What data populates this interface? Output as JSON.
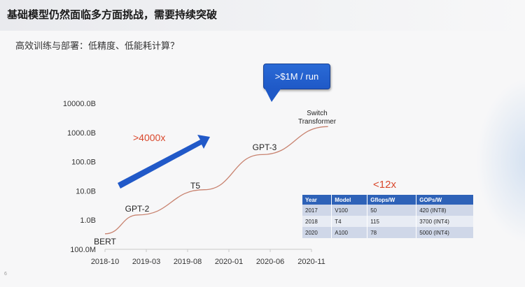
{
  "header": {
    "title": "基础模型仍然面临多方面挑战，需要持续突破"
  },
  "subtitle": "高效训练与部署：低精度、低能耗计算？",
  "page_number": "6",
  "callout": {
    "label": ">$1M / run",
    "color": "#1f59c7"
  },
  "growth_label": ">4000x",
  "efficiency_label": "<12x",
  "colors": {
    "accent_red": "#d9472b",
    "curve": "#c8826f",
    "arrow_blue": "#2159c8",
    "table_header": "#2e62b8"
  },
  "chart_data": {
    "type": "line",
    "title": "",
    "xlabel": "",
    "ylabel": "",
    "yscale": "log",
    "x_ticks": [
      "2018-10",
      "2019-03",
      "2019-08",
      "2020-01",
      "2020-06",
      "2020-11"
    ],
    "y_ticks": [
      "100.0M",
      "1.0B",
      "10.0B",
      "100.0B",
      "1000.0B",
      "10000.0B"
    ],
    "xlim": [
      "2018-10",
      "2020-11"
    ],
    "ylim_params_billion": [
      0.1,
      10000
    ],
    "series": [
      {
        "points": [
          {
            "x": "2018-10",
            "y": 0.34,
            "label": "BERT"
          },
          {
            "x": "2019-02",
            "y": 1.5,
            "label": "GPT-2"
          },
          {
            "x": "2019-10",
            "y": 11,
            "label": "T5"
          },
          {
            "x": "2020-05",
            "y": 175,
            "label": "GPT-3"
          },
          {
            "x": "2021-01",
            "y": 1600,
            "label": "Switch Transformer"
          }
        ]
      }
    ],
    "grid": false
  },
  "table": {
    "headers": [
      "Year",
      "Model",
      "Gflops/W",
      "GOPs/W"
    ],
    "rows": [
      [
        "2017",
        "V100",
        "50",
        "420 (INT8)"
      ],
      [
        "2018",
        "T4",
        "115",
        "3700 (INT4)"
      ],
      [
        "2020",
        "A100",
        "78",
        "5000 (INT4)"
      ]
    ]
  }
}
